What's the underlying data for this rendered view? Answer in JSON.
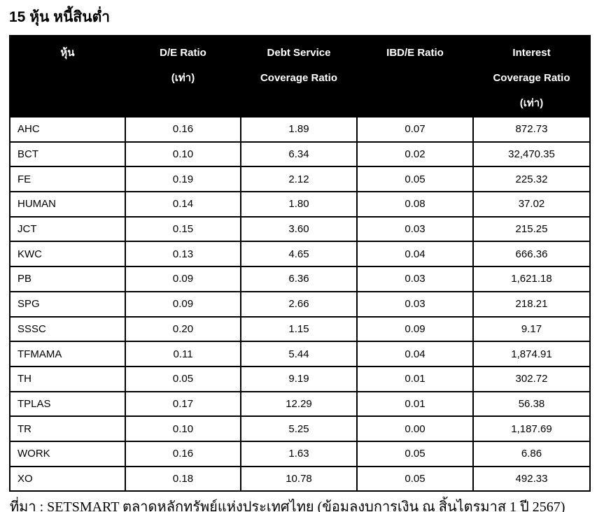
{
  "title": "15 หุ้น หนี้สินต่ำ",
  "table": {
    "columns": [
      "หุ้น",
      "D/E Ratio (เท่า)",
      "Debt Service Coverage Ratio",
      "IBD/E Ratio",
      "Interest Coverage Ratio (เท่า)"
    ],
    "header": {
      "col1": {
        "line1": "หุ้น"
      },
      "col2": {
        "line1": "D/E Ratio",
        "line2": "(เท่า)"
      },
      "col3": {
        "line1": "Debt Service",
        "line2": "Coverage Ratio"
      },
      "col4": {
        "line1": "IBD/E Ratio"
      },
      "col5": {
        "line1": "Interest",
        "line2": "Coverage Ratio",
        "line3": "(เท่า)"
      }
    },
    "rows": [
      [
        "AHC",
        "0.16",
        "1.89",
        "0.07",
        "872.73"
      ],
      [
        "BCT",
        "0.10",
        "6.34",
        "0.02",
        "32,470.35"
      ],
      [
        "FE",
        "0.19",
        "2.12",
        "0.05",
        "225.32"
      ],
      [
        "HUMAN",
        "0.14",
        "1.80",
        "0.08",
        "37.02"
      ],
      [
        "JCT",
        "0.15",
        "3.60",
        "0.03",
        "215.25"
      ],
      [
        "KWC",
        "0.13",
        "4.65",
        "0.04",
        "666.36"
      ],
      [
        "PB",
        "0.09",
        "6.36",
        "0.03",
        "1,621.18"
      ],
      [
        "SPG",
        "0.09",
        "2.66",
        "0.03",
        "218.21"
      ],
      [
        "SSSC",
        "0.20",
        "1.15",
        "0.09",
        "9.17"
      ],
      [
        "TFMAMA",
        "0.11",
        "5.44",
        "0.04",
        "1,874.91"
      ],
      [
        "TH",
        "0.05",
        "9.19",
        "0.01",
        "302.72"
      ],
      [
        "TPLAS",
        "0.17",
        "12.29",
        "0.01",
        "56.38"
      ],
      [
        "TR",
        "0.10",
        "5.25",
        "0.00",
        "1,187.69"
      ],
      [
        "WORK",
        "0.16",
        "1.63",
        "0.05",
        "6.86"
      ],
      [
        "XO",
        "0.18",
        "10.78",
        "0.05",
        "492.33"
      ]
    ]
  },
  "footer": {
    "source_note": "ที่มา : SETSMART ตลาดหลักทรัพย์แห่งประเทศไทย (ข้อมูลงบการเงิน ณ สิ้นไตรมาส 1 ปี 2567)"
  },
  "colors": {
    "header_bg": "#000000",
    "header_text": "#ffffff",
    "body_text": "#000000",
    "border": "#000000",
    "page_bg": "#ffffff"
  }
}
